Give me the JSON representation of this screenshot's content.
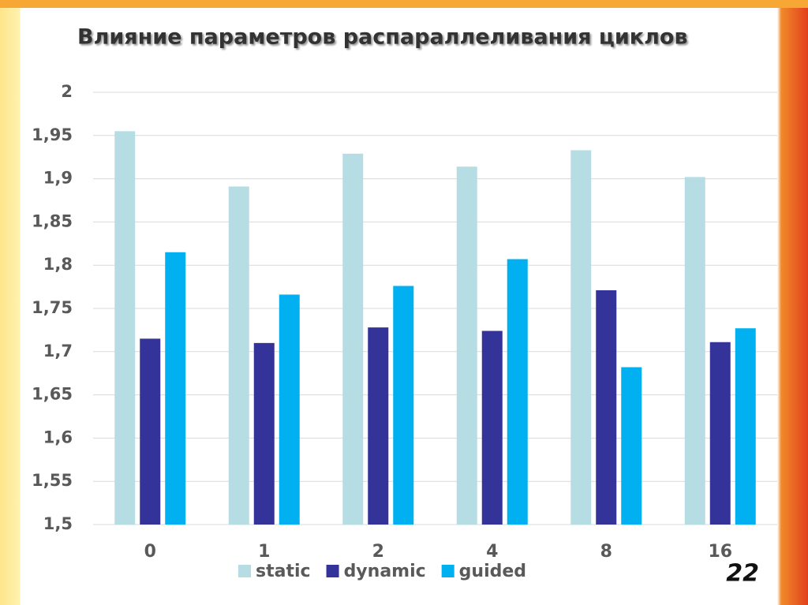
{
  "chart_data": {
    "type": "bar",
    "title": "Влияние параметров распараллеливания циклов",
    "categories": [
      "0",
      "1",
      "2",
      "4",
      "8",
      "16"
    ],
    "series": [
      {
        "name": "static",
        "color": "#b7dde4",
        "values": [
          1.955,
          1.891,
          1.929,
          1.914,
          1.933,
          1.902
        ]
      },
      {
        "name": "dynamic",
        "color": "#343399",
        "values": [
          1.715,
          1.71,
          1.728,
          1.724,
          1.771,
          1.711
        ]
      },
      {
        "name": "guided",
        "color": "#00b0f0",
        "values": [
          1.815,
          1.766,
          1.776,
          1.807,
          1.682,
          1.727
        ]
      }
    ],
    "ylim": [
      1.5,
      2
    ],
    "yticks": [
      {
        "value": 1.5,
        "label": "1,5"
      },
      {
        "value": 1.55,
        "label": "1,55"
      },
      {
        "value": 1.6,
        "label": "1,6"
      },
      {
        "value": 1.65,
        "label": "1,65"
      },
      {
        "value": 1.7,
        "label": "1,7"
      },
      {
        "value": 1.75,
        "label": "1,75"
      },
      {
        "value": 1.8,
        "label": "1,8"
      },
      {
        "value": 1.85,
        "label": "1,85"
      },
      {
        "value": 1.9,
        "label": "1,9"
      },
      {
        "value": 1.95,
        "label": "1,95"
      },
      2
    ],
    "grid": true,
    "legend": "bottom"
  },
  "slide_number": "22"
}
